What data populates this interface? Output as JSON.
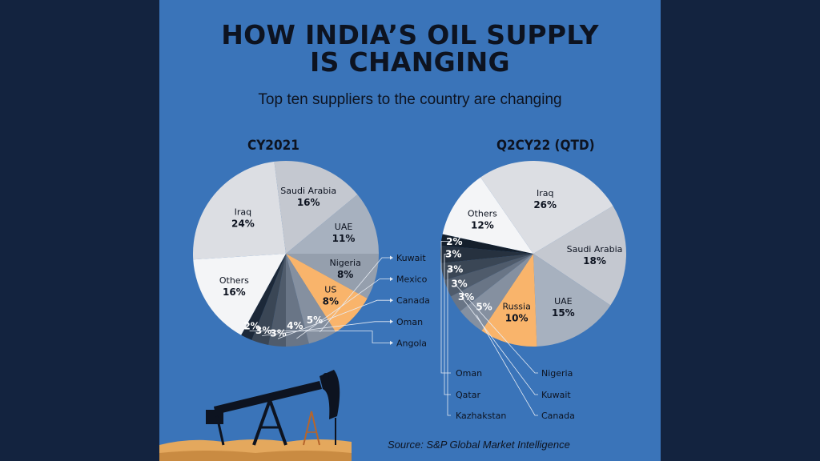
{
  "header": {
    "title_line1": "HOW INDIA’S OIL SUPPLY",
    "title_line2": "IS CHANGING",
    "subtitle": "Top ten suppliers to the country are changing"
  },
  "source": "Source: S&P Global Market Intelligence",
  "chart_data": [
    {
      "type": "pie",
      "title": "CY2021",
      "slices": [
        {
          "label": "UAE",
          "value": 11,
          "display": "11%",
          "color": "#a7b1bf",
          "show_label": true
        },
        {
          "label": "Nigeria",
          "value": 8,
          "display": "8%",
          "color": "#959fad",
          "show_label": true
        },
        {
          "label": "US",
          "value": 8,
          "display": "8%",
          "color": "#f9b46b",
          "show_label": true
        },
        {
          "label": "Kuwait",
          "value": 5,
          "display": "5%",
          "color": "#8590a0",
          "show_label": false
        },
        {
          "label": "Mexico",
          "value": 4,
          "display": "4%",
          "color": "#697586",
          "show_label": false
        },
        {
          "label": "Canada",
          "value": 3,
          "display": "3%",
          "color": "#4f5b6b",
          "show_label": false
        },
        {
          "label": "Oman",
          "value": 3,
          "display": "3%",
          "color": "#3a4655",
          "show_label": false
        },
        {
          "label": "Angola",
          "value": 2,
          "display": "2%",
          "color": "#1c2838",
          "show_label": false
        },
        {
          "label": "Others",
          "value": 16,
          "display": "16%",
          "color": "#f4f5f7",
          "show_label": true
        },
        {
          "label": "Iraq",
          "value": 24,
          "display": "24%",
          "color": "#dcdee3",
          "show_label": true
        },
        {
          "label": "Saudi Arabia",
          "value": 16,
          "display": "16%",
          "color": "#c4c8d0",
          "show_label": true
        }
      ],
      "callouts": [
        "Kuwait",
        "Mexico",
        "Canada",
        "Oman",
        "Angola"
      ]
    },
    {
      "type": "pie",
      "title": "Q2CY22 (QTD)",
      "slices": [
        {
          "label": "Saudi Arabia",
          "value": 18,
          "display": "18%",
          "color": "#c4c8d0",
          "show_label": true
        },
        {
          "label": "UAE",
          "value": 15,
          "display": "15%",
          "color": "#a7b1bf",
          "show_label": true
        },
        {
          "label": "Russia",
          "value": 10,
          "display": "10%",
          "color": "#f9b46b",
          "show_label": true
        },
        {
          "label": "Canada",
          "value": 5,
          "display": "5%",
          "color": "#8590a0",
          "show_label": false
        },
        {
          "label": "Kuwait",
          "value": 3,
          "display": "3%",
          "color": "#697586",
          "show_label": false
        },
        {
          "label": "Nigeria",
          "value": 3,
          "display": "3%",
          "color": "#4f5b6b",
          "show_label": false
        },
        {
          "label": "Kazhakstan",
          "value": 3,
          "display": "3%",
          "color": "#3a4655",
          "show_label": false
        },
        {
          "label": "Qatar",
          "value": 3,
          "display": "3%",
          "color": "#26313f",
          "show_label": false
        },
        {
          "label": "Oman",
          "value": 2,
          "display": "2%",
          "color": "#141f2c",
          "show_label": false
        },
        {
          "label": "Others",
          "value": 12,
          "display": "12%",
          "color": "#f4f5f7",
          "show_label": true
        },
        {
          "label": "Iraq",
          "value": 26,
          "display": "26%",
          "color": "#dcdee3",
          "show_label": true
        }
      ],
      "callouts": [
        "Oman",
        "Qatar",
        "Kazhakstan",
        "Nigeria",
        "Kuwait",
        "Canada"
      ]
    }
  ]
}
